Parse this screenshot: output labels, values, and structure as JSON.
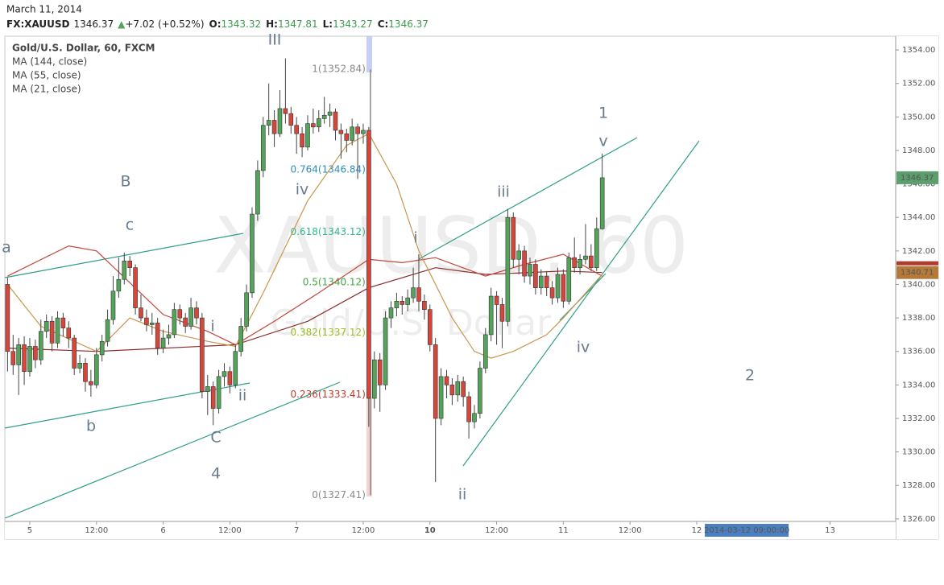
{
  "header": {
    "date": "March 11, 2014",
    "symbol": "FX:XAUUSD",
    "price": "1346.37",
    "change": "+7.02 (+0.52%)",
    "ohlc": [
      {
        "label": "O:",
        "value": "1343.32"
      },
      {
        "label": "H:",
        "value": "1347.81"
      },
      {
        "label": "L:",
        "value": "1343.27"
      },
      {
        "label": "C:",
        "value": "1346.37"
      }
    ]
  },
  "chart_data": {
    "type": "candlestick",
    "title": "Gold/U.S. Dollar, 60, FXCM",
    "watermark": [
      "XAUUSD, 60",
      "Gold/U.S. Dollar"
    ],
    "up_color": "#53a35a",
    "down_color": "#d7463b",
    "xlim": [
      -4.49,
      155.8
    ],
    "ylim": [
      1325.85,
      1354.82
    ],
    "yticks": [
      {
        "value": 1326,
        "label": "1326.00"
      },
      {
        "value": 1328,
        "label": "1328.00"
      },
      {
        "value": 1330,
        "label": "1330.00"
      },
      {
        "value": 1332,
        "label": "1332.00"
      },
      {
        "value": 1334,
        "label": "1334.00"
      },
      {
        "value": 1336,
        "label": "1336.00"
      },
      {
        "value": 1338,
        "label": "1338.00"
      },
      {
        "value": 1340,
        "label": "1340.00"
      },
      {
        "value": 1342,
        "label": "1342.00"
      },
      {
        "value": 1344,
        "label": "1344.00"
      },
      {
        "value": 1346,
        "label": "1346.00"
      },
      {
        "value": 1348,
        "label": "1348.00"
      },
      {
        "value": 1350,
        "label": "1350.00"
      },
      {
        "value": 1352,
        "label": "1352.00"
      },
      {
        "value": 1354,
        "label": "1354.00"
      }
    ],
    "xticks": [
      {
        "value": 0,
        "label": "5"
      },
      {
        "value": 12,
        "label": "12:00"
      },
      {
        "value": 24,
        "label": "6"
      },
      {
        "value": 36,
        "label": "12:00"
      },
      {
        "value": 48,
        "label": "7"
      },
      {
        "value": 60,
        "label": "12:00"
      },
      {
        "value": 72,
        "label": "10"
      },
      {
        "value": 84,
        "label": "12:00"
      },
      {
        "value": 96,
        "label": "11"
      },
      {
        "value": 108,
        "label": "12:00"
      },
      {
        "value": 120,
        "label": "12"
      },
      {
        "value": 144,
        "label": "13"
      }
    ],
    "grid": true,
    "crosshair": {
      "x": 129,
      "label": "2014-03-12 09:00:00"
    },
    "x": [
      -4,
      -3,
      -2,
      -1,
      0,
      1,
      2,
      3,
      4,
      5,
      6,
      7,
      8,
      9,
      10,
      11,
      12,
      13,
      14,
      15,
      16,
      17,
      18,
      19,
      20,
      21,
      22,
      23,
      24,
      25,
      26,
      27,
      28,
      29,
      30,
      31,
      32,
      33,
      34,
      35,
      36,
      37,
      38,
      39,
      40,
      41,
      42,
      43,
      44,
      45,
      46,
      47,
      48,
      49,
      50,
      51,
      52,
      53,
      54,
      55,
      56,
      57,
      58,
      59,
      60,
      61,
      62,
      63,
      64,
      65,
      66,
      67,
      68,
      69,
      70,
      71,
      72,
      73,
      74,
      75,
      76,
      77,
      78,
      79,
      80,
      81,
      82,
      83,
      84,
      85,
      86,
      87,
      88,
      89,
      90,
      91,
      92,
      93,
      94,
      95,
      96,
      97,
      98,
      99,
      100,
      101,
      102,
      103
    ],
    "candles": [
      [
        1340.0,
        1340.4,
        1334.8,
        1336.0
      ],
      [
        1336.0,
        1337.0,
        1334.6,
        1335.2
      ],
      [
        1335.2,
        1336.8,
        1333.4,
        1336.4
      ],
      [
        1336.4,
        1336.9,
        1334.0,
        1334.8
      ],
      [
        1334.8,
        1336.8,
        1334.5,
        1336.3
      ],
      [
        1336.3,
        1336.7,
        1335.0,
        1335.5
      ],
      [
        1335.5,
        1337.9,
        1335.2,
        1337.2
      ],
      [
        1337.2,
        1338.2,
        1336.8,
        1337.8
      ],
      [
        1337.8,
        1338.1,
        1336.0,
        1336.5
      ],
      [
        1336.5,
        1338.4,
        1336.2,
        1338.0
      ],
      [
        1338.0,
        1338.3,
        1336.9,
        1337.4
      ],
      [
        1337.4,
        1337.8,
        1336.2,
        1336.8
      ],
      [
        1336.8,
        1337.0,
        1334.6,
        1335.0
      ],
      [
        1335.0,
        1335.8,
        1334.7,
        1335.3
      ],
      [
        1335.3,
        1335.6,
        1333.6,
        1334.2
      ],
      [
        1334.2,
        1334.9,
        1333.3,
        1334.0
      ],
      [
        1334.0,
        1336.2,
        1333.8,
        1335.8
      ],
      [
        1335.8,
        1337.0,
        1335.4,
        1336.6
      ],
      [
        1336.6,
        1338.5,
        1336.3,
        1337.9
      ],
      [
        1337.9,
        1340.5,
        1337.6,
        1339.6
      ],
      [
        1339.6,
        1341.6,
        1339.2,
        1340.3
      ],
      [
        1340.3,
        1341.9,
        1340.0,
        1341.4
      ],
      [
        1341.4,
        1341.7,
        1340.5,
        1341.0
      ],
      [
        1341.0,
        1341.2,
        1338.2,
        1338.6
      ],
      [
        1338.6,
        1339.4,
        1337.8,
        1338.0
      ],
      [
        1338.0,
        1338.5,
        1337.2,
        1337.6
      ],
      [
        1337.6,
        1338.3,
        1337.0,
        1337.7
      ],
      [
        1337.7,
        1338.0,
        1335.8,
        1336.2
      ],
      [
        1336.2,
        1337.3,
        1335.9,
        1336.8
      ],
      [
        1336.8,
        1337.6,
        1336.4,
        1337.0
      ],
      [
        1337.0,
        1338.9,
        1336.8,
        1338.5
      ],
      [
        1338.5,
        1338.8,
        1337.6,
        1338.0
      ],
      [
        1338.0,
        1338.3,
        1337.1,
        1337.5
      ],
      [
        1337.5,
        1339.2,
        1337.3,
        1338.6
      ],
      [
        1338.6,
        1339.0,
        1337.6,
        1338.0
      ],
      [
        1338.0,
        1338.3,
        1333.2,
        1333.6
      ],
      [
        1333.6,
        1334.6,
        1332.2,
        1333.9
      ],
      [
        1333.9,
        1334.2,
        1331.6,
        1332.6
      ],
      [
        1332.6,
        1334.9,
        1332.3,
        1334.5
      ],
      [
        1334.5,
        1335.3,
        1333.9,
        1334.8
      ],
      [
        1334.8,
        1335.1,
        1333.5,
        1334.0
      ],
      [
        1334.0,
        1336.4,
        1333.8,
        1336.0
      ],
      [
        1336.0,
        1338.0,
        1335.7,
        1337.5
      ],
      [
        1337.5,
        1340.0,
        1337.2,
        1339.5
      ],
      [
        1339.5,
        1344.6,
        1339.2,
        1344.2
      ],
      [
        1344.2,
        1347.4,
        1343.8,
        1346.8
      ],
      [
        1346.8,
        1350.0,
        1346.4,
        1349.5
      ],
      [
        1349.5,
        1352.0,
        1348.9,
        1349.8
      ],
      [
        1349.8,
        1350.4,
        1348.2,
        1349.0
      ],
      [
        1349.0,
        1351.6,
        1348.8,
        1350.5
      ],
      [
        1350.5,
        1353.5,
        1349.6,
        1350.2
      ],
      [
        1350.2,
        1350.6,
        1349.0,
        1349.5
      ],
      [
        1349.5,
        1350.0,
        1347.8,
        1349.0
      ],
      [
        1349.0,
        1349.4,
        1347.6,
        1348.2
      ],
      [
        1348.2,
        1350.1,
        1348.0,
        1349.6
      ],
      [
        1349.6,
        1350.5,
        1349.0,
        1349.4
      ],
      [
        1349.4,
        1350.4,
        1349.1,
        1349.9
      ],
      [
        1349.9,
        1351.2,
        1349.6,
        1350.1
      ],
      [
        1350.1,
        1350.8,
        1349.4,
        1350.3
      ],
      [
        1350.3,
        1350.5,
        1348.6,
        1349.2
      ],
      [
        1349.2,
        1349.6,
        1347.5,
        1349.0
      ],
      [
        1349.0,
        1349.3,
        1347.9,
        1348.6
      ],
      [
        1348.6,
        1349.9,
        1348.3,
        1349.4
      ],
      [
        1349.4,
        1349.6,
        1346.3,
        1349.0
      ],
      [
        1349.0,
        1349.6,
        1348.4,
        1349.2
      ],
      [
        1349.2,
        1349.4,
        1331.5,
        1333.2
      ],
      [
        1333.2,
        1336.0,
        1332.6,
        1335.5
      ],
      [
        1335.5,
        1335.9,
        1332.4,
        1334.0
      ],
      [
        1334.0,
        1338.4,
        1333.7,
        1338.0
      ],
      [
        1338.0,
        1339.0,
        1337.4,
        1338.6
      ],
      [
        1338.6,
        1339.5,
        1338.1,
        1339.0
      ],
      [
        1339.0,
        1339.3,
        1338.2,
        1338.8
      ],
      [
        1338.8,
        1339.7,
        1338.4,
        1339.2
      ],
      [
        1339.2,
        1341.0,
        1338.9,
        1339.8
      ],
      [
        1339.8,
        1341.8,
        1338.4,
        1339.0
      ],
      [
        1339.0,
        1339.4,
        1337.9,
        1338.5
      ],
      [
        1338.5,
        1338.8,
        1336.0,
        1336.4
      ],
      [
        1336.4,
        1336.8,
        1328.2,
        1332.0
      ],
      [
        1332.0,
        1335.0,
        1331.6,
        1334.5
      ],
      [
        1334.5,
        1334.9,
        1333.2,
        1334.0
      ],
      [
        1334.0,
        1334.4,
        1332.8,
        1333.4
      ],
      [
        1333.4,
        1334.6,
        1333.0,
        1334.2
      ],
      [
        1334.2,
        1334.5,
        1332.7,
        1333.3
      ],
      [
        1333.3,
        1333.6,
        1330.8,
        1331.8
      ],
      [
        1331.8,
        1332.8,
        1331.4,
        1332.3
      ],
      [
        1332.3,
        1335.4,
        1332.0,
        1335.0
      ],
      [
        1335.0,
        1337.4,
        1334.7,
        1337.0
      ],
      [
        1337.0,
        1339.8,
        1336.6,
        1339.3
      ],
      [
        1339.3,
        1339.6,
        1336.4,
        1338.8
      ],
      [
        1338.8,
        1339.2,
        1336.2,
        1337.8
      ],
      [
        1337.8,
        1344.5,
        1337.5,
        1344.0
      ],
      [
        1344.0,
        1344.3,
        1341.0,
        1341.5
      ],
      [
        1341.5,
        1342.4,
        1340.6,
        1342.0
      ],
      [
        1342.0,
        1342.3,
        1340.1,
        1340.5
      ],
      [
        1340.5,
        1341.6,
        1340.0,
        1341.2
      ],
      [
        1341.2,
        1341.5,
        1339.4,
        1339.8
      ],
      [
        1339.8,
        1340.9,
        1339.4,
        1340.5
      ],
      [
        1340.5,
        1340.8,
        1339.3,
        1339.8
      ],
      [
        1339.8,
        1340.2,
        1338.8,
        1339.2
      ],
      [
        1339.2,
        1341.0,
        1338.9,
        1340.6
      ],
      [
        1340.6,
        1340.9,
        1338.6,
        1339.0
      ],
      [
        1339.0,
        1341.9,
        1338.8,
        1341.6
      ],
      [
        1341.6,
        1342.8,
        1340.7,
        1341.0
      ],
      [
        1341.0,
        1341.8,
        1340.6,
        1341.5
      ],
      [
        1341.5,
        1343.6,
        1341.2,
        1341.7
      ],
      [
        1341.7,
        1342.4,
        1340.8,
        1341.0
      ],
      [
        1341.0,
        1344.0,
        1340.8,
        1343.32
      ],
      [
        1343.32,
        1347.81,
        1343.27,
        1346.37
      ]
    ],
    "series": [
      {
        "name": "MA (144, close)",
        "color": "#8e2a2a",
        "x": [
          -4,
          12,
          37,
          50,
          61,
          73,
          82,
          96,
          103
        ],
        "values": [
          1336.2,
          1336.0,
          1336.4,
          1337.8,
          1339.8,
          1341.0,
          1340.6,
          1340.8,
          1340.71
        ]
      },
      {
        "name": "MA (55, close)",
        "color": "#c2463a",
        "x": [
          -4,
          7,
          12,
          24,
          32,
          37,
          44,
          52,
          61,
          67,
          73,
          82,
          89,
          96,
          103
        ],
        "values": [
          1340.5,
          1342.3,
          1342.0,
          1338.2,
          1337.2,
          1336.4,
          1337.8,
          1339.5,
          1341.5,
          1341.3,
          1341.6,
          1340.5,
          1341.2,
          1341.8,
          1340.5
        ]
      },
      {
        "name": "MA (21, close)",
        "color": "#c8964c",
        "x": [
          -4,
          2,
          12,
          18,
          24,
          32,
          37,
          42,
          50,
          57,
          61,
          66,
          70,
          76,
          80,
          83,
          87,
          93,
          96,
          103
        ],
        "values": [
          1340.0,
          1337.5,
          1336.0,
          1338.0,
          1337.2,
          1336.6,
          1336.3,
          1339.5,
          1345.0,
          1348.3,
          1349.0,
          1346.0,
          1342.0,
          1338.0,
          1336.0,
          1335.6,
          1336.0,
          1337.0,
          1338.0,
          1340.6
        ]
      }
    ],
    "fib_levels": [
      {
        "label": "1(1352.84)",
        "value": 1352.84,
        "color": "#888888"
      },
      {
        "label": "0.764(1346.84)",
        "value": 1346.84,
        "color": "#2e8bc0"
      },
      {
        "label": "0.618(1343.12)",
        "value": 1343.12,
        "color": "#2fb88a"
      },
      {
        "label": "0.5(1340.12)",
        "value": 1340.12,
        "color": "#43a843"
      },
      {
        "label": "0.382(1337.12)",
        "value": 1337.12,
        "color": "#9cbf1e"
      },
      {
        "label": "0.236(1333.41)",
        "value": 1333.41,
        "color": "#c0392b"
      },
      {
        "label": "0(1327.41)",
        "value": 1327.41,
        "color": "#888888"
      }
    ],
    "wave_labels": [
      "III",
      "B",
      "c",
      "a",
      "b",
      "i",
      "ii",
      "C",
      "4",
      "iv",
      "i",
      "ii",
      "iii",
      "iv",
      "1",
      "v",
      "2"
    ]
  }
}
